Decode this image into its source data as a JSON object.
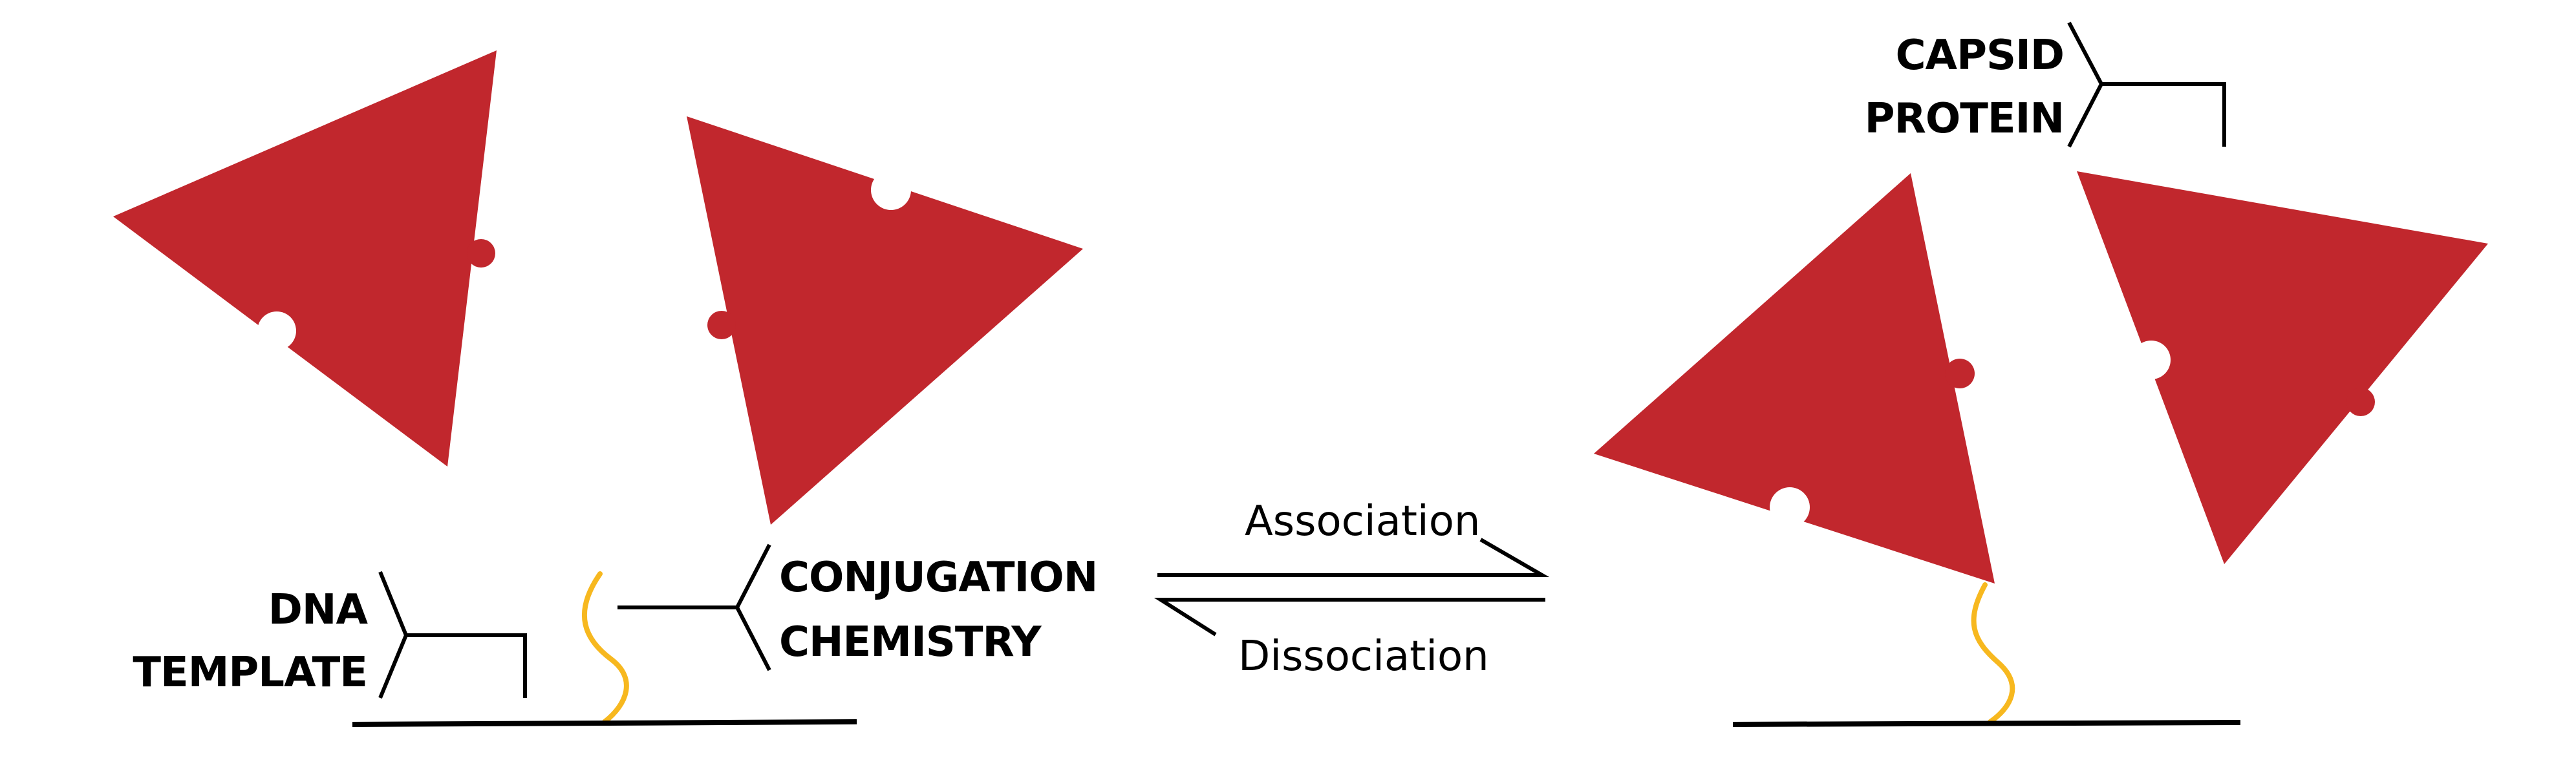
{
  "labels": {
    "dna_template_line1": "DNA",
    "dna_template_line2": "TEMPLATE",
    "conjugation_line1": "CONJUGATION",
    "conjugation_line2": "CHEMISTRY",
    "capsid_line1": "CAPSID",
    "capsid_line2": "PROTEIN",
    "association": "Association",
    "dissociation": "Dissociation"
  },
  "colors": {
    "capsid_protein": "#c1272d",
    "dna_strand": "#f7b81f",
    "line": "#000000",
    "background": "#ffffff"
  }
}
